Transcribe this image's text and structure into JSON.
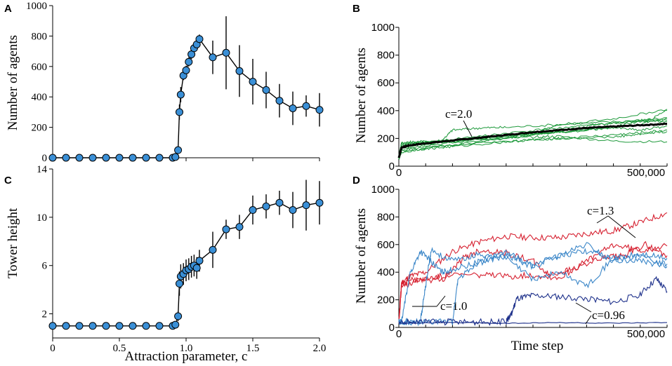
{
  "chart_data": [
    {
      "panel": "A",
      "type": "line",
      "ylabel": "Number of agents",
      "xlabel": "",
      "xlim": [
        0,
        2.0
      ],
      "ylim": [
        0,
        1000
      ],
      "yticks": [
        "0",
        "200",
        "400",
        "600",
        "800",
        "1000"
      ],
      "series": [
        {
          "name": "mean",
          "x": [
            0,
            0.1,
            0.2,
            0.3,
            0.4,
            0.5,
            0.6,
            0.7,
            0.8,
            0.9,
            0.92,
            0.94,
            0.95,
            0.96,
            0.98,
            1.0,
            1.02,
            1.04,
            1.06,
            1.08,
            1.1,
            1.2,
            1.3,
            1.4,
            1.5,
            1.6,
            1.7,
            1.8,
            1.9,
            2.0
          ],
          "y": [
            0,
            0,
            0,
            0,
            0,
            0,
            0,
            0,
            0,
            0,
            5,
            50,
            300,
            415,
            540,
            575,
            630,
            680,
            720,
            745,
            780,
            660,
            690,
            570,
            500,
            445,
            375,
            325,
            340,
            315
          ],
          "err": [
            0,
            0,
            0,
            0,
            0,
            0,
            0,
            0,
            0,
            0,
            5,
            20,
            50,
            50,
            30,
            30,
            30,
            30,
            30,
            30,
            30,
            110,
            240,
            170,
            150,
            120,
            110,
            110,
            70,
            110
          ]
        }
      ]
    },
    {
      "panel": "B",
      "type": "line",
      "ylabel": "Number of agents",
      "xlabel": "",
      "xlim": [
        0,
        500000
      ],
      "ylim": [
        0,
        1000
      ],
      "yticks": [
        "0",
        "200",
        "400",
        "600",
        "800",
        "1000"
      ],
      "xtick_label": "500,000",
      "annotation": "c=2.0",
      "series": [
        {
          "name": "mean",
          "x": [
            0,
            5000,
            20000,
            50000,
            100000,
            150000,
            200000,
            250000,
            300000,
            350000,
            400000,
            450000,
            500000
          ],
          "y": [
            60,
            135,
            150,
            165,
            185,
            205,
            225,
            245,
            260,
            275,
            285,
            295,
            305
          ]
        },
        {
          "name": "run",
          "x": [
            0,
            5000,
            30000,
            80000,
            100000,
            150000,
            200000,
            300000,
            400000,
            500000
          ],
          "y": [
            70,
            170,
            175,
            185,
            260,
            275,
            280,
            300,
            320,
            330
          ]
        },
        {
          "name": "run",
          "x": [
            0,
            5000,
            50000,
            100000,
            200000,
            250000,
            300000,
            400000,
            450000,
            500000
          ],
          "y": [
            60,
            120,
            135,
            150,
            200,
            230,
            245,
            280,
            330,
            340
          ]
        },
        {
          "name": "run",
          "x": [
            0,
            5000,
            50000,
            100000,
            200000,
            300000,
            350000,
            400000,
            500000
          ],
          "y": [
            80,
            140,
            160,
            180,
            210,
            250,
            290,
            310,
            350
          ]
        },
        {
          "name": "run",
          "x": [
            0,
            5000,
            50000,
            100000,
            200000,
            250000,
            300000,
            400000,
            450000,
            500000
          ],
          "y": [
            50,
            110,
            125,
            140,
            175,
            190,
            200,
            225,
            240,
            260
          ]
        },
        {
          "name": "run",
          "x": [
            0,
            5000,
            50000,
            150000,
            250000,
            300000,
            400000,
            500000
          ],
          "y": [
            60,
            160,
            175,
            205,
            240,
            300,
            340,
            410
          ]
        },
        {
          "name": "run",
          "x": [
            0,
            5000,
            50000,
            150000,
            250000,
            350000,
            400000,
            450000,
            500000
          ],
          "y": [
            70,
            150,
            165,
            200,
            230,
            260,
            280,
            260,
            290
          ]
        },
        {
          "name": "run",
          "x": [
            0,
            5000,
            50000,
            150000,
            250000,
            300000,
            400000,
            450000,
            500000
          ],
          "y": [
            50,
            100,
            130,
            170,
            190,
            200,
            210,
            230,
            250
          ]
        },
        {
          "name": "run",
          "x": [
            0,
            5000,
            50000,
            150000,
            250000,
            300000,
            400000,
            500000
          ],
          "y": [
            60,
            130,
            150,
            185,
            210,
            215,
            180,
            175
          ]
        },
        {
          "name": "run",
          "x": [
            0,
            5000,
            50000,
            150000,
            250000,
            350000,
            450000,
            500000
          ],
          "y": [
            80,
            160,
            170,
            215,
            255,
            295,
            320,
            320
          ]
        },
        {
          "name": "run",
          "x": [
            0,
            5000,
            50000,
            150000,
            250000,
            350000,
            450000,
            500000
          ],
          "y": [
            60,
            140,
            160,
            195,
            230,
            265,
            300,
            400
          ]
        }
      ]
    },
    {
      "panel": "C",
      "type": "line",
      "ylabel": "Tower height",
      "xlabel": "Attraction parameter, c",
      "xlim": [
        0,
        2.0
      ],
      "ylim": [
        0,
        14
      ],
      "yticks": [
        "2",
        "6",
        "10",
        "14"
      ],
      "xticks": [
        "0",
        "0.5",
        "1.0",
        "1.5",
        "2.0"
      ],
      "series": [
        {
          "name": "mean",
          "x": [
            0,
            0.1,
            0.2,
            0.3,
            0.4,
            0.5,
            0.6,
            0.7,
            0.8,
            0.9,
            0.92,
            0.94,
            0.95,
            0.96,
            0.98,
            1.0,
            1.02,
            1.04,
            1.06,
            1.08,
            1.1,
            1.2,
            1.3,
            1.4,
            1.5,
            1.6,
            1.7,
            1.8,
            1.9,
            2.0
          ],
          "y": [
            1,
            1,
            1,
            1,
            1,
            1,
            1,
            1,
            1,
            1,
            1.1,
            1.8,
            4.5,
            5.1,
            5.3,
            5.6,
            5.7,
            5.9,
            6.0,
            5.8,
            6.4,
            7.3,
            9.0,
            9.2,
            10.6,
            10.9,
            11.2,
            10.6,
            11.0,
            11.2
          ],
          "err": [
            0,
            0,
            0,
            0,
            0,
            0,
            0,
            0,
            0,
            0,
            0.1,
            0.4,
            1.0,
            1.0,
            0.9,
            0.9,
            0.9,
            0.9,
            0.9,
            0.9,
            0.9,
            1.5,
            0.8,
            1.0,
            1.2,
            1.0,
            1.0,
            1.5,
            2.1,
            1.8
          ]
        }
      ]
    },
    {
      "panel": "D",
      "type": "line",
      "ylabel": "Number of agents",
      "xlabel": "Time step",
      "xlim": [
        0,
        500000
      ],
      "ylim": [
        0,
        1000
      ],
      "yticks": [
        "0",
        "200",
        "400",
        "600",
        "800",
        "1000"
      ],
      "xtick_label": "500,000",
      "annotations": [
        "c=1.3",
        "c=1.0",
        "c=0.96"
      ],
      "series": [
        {
          "name": "c=1.3",
          "color": "#d62030",
          "x": [
            0,
            5000,
            20000,
            50000,
            100000,
            150000,
            200000,
            250000,
            300000,
            350000,
            400000,
            450000,
            500000
          ],
          "y": [
            30,
            320,
            370,
            400,
            550,
            620,
            660,
            650,
            650,
            680,
            700,
            760,
            830
          ]
        },
        {
          "name": "c=1.3",
          "color": "#d62030",
          "x": [
            0,
            5000,
            30000,
            60000,
            90000,
            150000,
            200000,
            250000,
            300000,
            350000,
            400000,
            450000,
            500000
          ],
          "y": [
            40,
            290,
            340,
            360,
            380,
            380,
            370,
            380,
            360,
            480,
            600,
            560,
            590
          ]
        },
        {
          "name": "c=1.3",
          "color": "#d62030",
          "x": [
            0,
            5000,
            40000,
            80000,
            120000,
            150000,
            200000,
            250000,
            280000,
            320000,
            380000,
            420000,
            460000,
            500000
          ],
          "y": [
            40,
            330,
            350,
            340,
            500,
            560,
            540,
            480,
            380,
            420,
            500,
            520,
            600,
            520
          ]
        },
        {
          "name": "c=1.0",
          "color": "#3a86c8",
          "x": [
            0,
            5000,
            20000,
            40000,
            60000,
            80000,
            100000,
            150000,
            200000,
            250000,
            300000,
            350000,
            400000,
            450000,
            500000
          ],
          "y": [
            40,
            40,
            380,
            550,
            480,
            400,
            420,
            470,
            520,
            440,
            520,
            600,
            480,
            510,
            460
          ]
        },
        {
          "name": "c=1.0",
          "color": "#3a86c8",
          "x": [
            0,
            20000,
            40000,
            50000,
            60000,
            100000,
            150000,
            200000,
            250000,
            300000,
            350000,
            400000,
            450000,
            500000
          ],
          "y": [
            40,
            40,
            40,
            300,
            560,
            480,
            530,
            500,
            350,
            400,
            300,
            500,
            530,
            500
          ]
        },
        {
          "name": "c=1.0",
          "color": "#3a86c8",
          "x": [
            0,
            50000,
            100000,
            110000,
            150000,
            200000,
            250000,
            300000,
            350000,
            400000,
            450000,
            500000
          ],
          "y": [
            40,
            40,
            40,
            350,
            480,
            540,
            450,
            520,
            550,
            500,
            480,
            440
          ]
        },
        {
          "name": "c=0.96",
          "color": "#1c2f8a",
          "x": [
            0,
            50000,
            100000,
            150000,
            200000,
            210000,
            220000,
            250000,
            300000,
            350000,
            400000,
            450000,
            480000,
            500000
          ],
          "y": [
            40,
            40,
            40,
            40,
            40,
            100,
            210,
            230,
            220,
            210,
            180,
            240,
            350,
            260
          ]
        },
        {
          "name": "c=0.96",
          "color": "#1c2f8a",
          "x": [
            0,
            100000,
            200000,
            300000,
            400000,
            500000
          ],
          "y": [
            30,
            35,
            30,
            35,
            30,
            35
          ]
        }
      ]
    }
  ]
}
